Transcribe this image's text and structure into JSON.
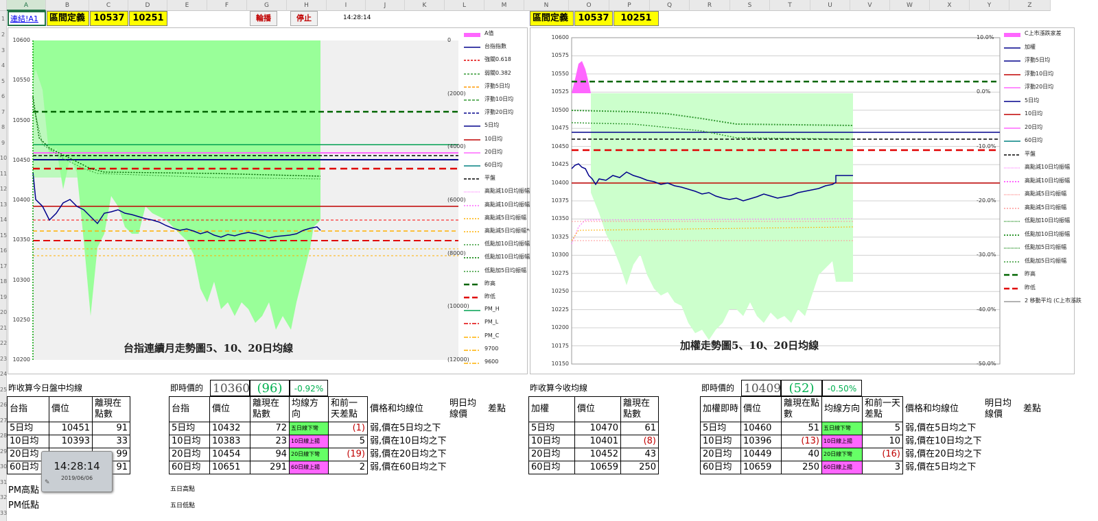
{
  "columns": [
    "A",
    "B",
    "C",
    "D",
    "E",
    "F",
    "G",
    "H",
    "I",
    "J",
    "K",
    "L",
    "M",
    "N",
    "O",
    "P",
    "Q",
    "R",
    "S",
    "T",
    "U",
    "V",
    "W",
    "X",
    "Y",
    "Z"
  ],
  "rows": [
    "1",
    "2",
    "3",
    "4",
    "5",
    "6",
    "7",
    "8",
    "9",
    "10",
    "11",
    "12",
    "13",
    "14",
    "15",
    "16",
    "17",
    "18",
    "19",
    "20",
    "21",
    "22",
    "23",
    "24",
    "25",
    "26",
    "27",
    "28",
    "29",
    "30",
    "31",
    "32",
    "33"
  ],
  "left_header": {
    "link": "連結!A1",
    "range_label": "區間定義",
    "high": "10537",
    "low": "10251",
    "btn_rotate": "輪播",
    "btn_stop": "停止",
    "time": "14:28:14"
  },
  "right_header": {
    "range_label": "區間定義",
    "high": "10537",
    "low": "10251"
  },
  "left_chart": {
    "title": "台指連續月走勢圖5、10、20日均線",
    "y_ticks": [
      "10600",
      "10550",
      "10500",
      "10450",
      "10400",
      "10350",
      "10300",
      "10250",
      "10200"
    ],
    "y2_ticks": [
      "0",
      "(2000)",
      "(4000)",
      "(6000)",
      "(8000)",
      "(10000)",
      "(12000)"
    ],
    "legend": [
      "A值",
      "台指指數",
      "強關0.618",
      "弱關0.382",
      "浮動5日均",
      "浮動10日均",
      "浮動20日均",
      "5日均",
      "10日均",
      "20日均",
      "60日均",
      "平盤",
      "高點減10日均振幅",
      "高點減10日均振幅*0.8",
      "高點減5日均振幅",
      "高點減5日均振幅*0.8",
      "低點加10日均振幅*0.8",
      "低點加10日均振幅",
      "低點加5日均振幅",
      "昨高",
      "昨低",
      "PM_H",
      "PM_L",
      "PM_C",
      "9700",
      "9600"
    ]
  },
  "right_chart": {
    "title": "加權走勢圖5、10、20日均線",
    "y_ticks": [
      "10600",
      "10575",
      "10550",
      "10525",
      "10500",
      "10475",
      "10450",
      "10425",
      "10400",
      "10375",
      "10350",
      "10325",
      "10300",
      "10275",
      "10250",
      "10225",
      "10200",
      "10175",
      "10150"
    ],
    "y2_ticks": [
      "10.0%",
      "0.0%",
      "-10.0%",
      "-20.0%",
      "-30.0%",
      "-40.0%",
      "-50.0%"
    ],
    "legend": [
      "C上市漲跌家差",
      "加權",
      "浮動5日均",
      "浮動10日均",
      "浮動20日均",
      "5日均",
      "10日均",
      "20日均",
      "60日均",
      "平盤",
      "高點減10日均振幅",
      "高點減10日均振幅",
      "高點減5日均振幅",
      "高點減5日均振幅",
      "低點加10日均振幅",
      "低點加10日均振幅",
      "低點加5日均振幅",
      "低點加5日均振幅",
      "昨高",
      "昨低",
      "2 移動平均 (C上市漲跌"
    ]
  },
  "tables": {
    "left_ma": {
      "title": "昨收算今日盤中均線",
      "headers": [
        "台指",
        "價位",
        "離現在點數"
      ],
      "rows": [
        [
          "5日均",
          "10451",
          "91"
        ],
        [
          "10日均",
          "10393",
          "33"
        ],
        [
          "20日均",
          "",
          "99"
        ],
        [
          "60日均",
          "",
          "91"
        ]
      ]
    },
    "left_rt": {
      "label": "即時價的",
      "price": "10360",
      "diff": "(96)",
      "pct": "-0.92%",
      "headers": [
        "台指",
        "價位",
        "離現在點數",
        "均線方向",
        "和前一天差點",
        "價格和均線位",
        "明日均線價",
        "差點"
      ],
      "rows": [
        [
          "5日均",
          "10432",
          "72",
          "五日線下彎",
          "(1)",
          "弱,價在5日均之下"
        ],
        [
          "10日均",
          "10383",
          "23",
          "10日線上揚",
          "5",
          "弱,價在10日均之下"
        ],
        [
          "20日均",
          "10454",
          "94",
          "20日線下彎",
          "(19)",
          "弱,價在20日均之下"
        ],
        [
          "60日均",
          "10651",
          "291",
          "60日線上揚",
          "2",
          "弱,價在60日均之下"
        ]
      ]
    },
    "right_ma": {
      "title": "昨收算今收均線",
      "headers": [
        "加權",
        "價位",
        "離現在點數"
      ],
      "rows": [
        [
          "5日均",
          "10470",
          "61"
        ],
        [
          "10日均",
          "10401",
          "(8)"
        ],
        [
          "20日均",
          "10452",
          "43"
        ],
        [
          "60日均",
          "10659",
          "250"
        ]
      ]
    },
    "right_rt": {
      "label": "即時價的",
      "price": "10409",
      "diff": "(52)",
      "pct": "-0.50%",
      "headers": [
        "加權即時",
        "價位",
        "離現在點數",
        "均線方向",
        "和前一天差點",
        "價格和均線位",
        "明日均線價",
        "差點"
      ],
      "rows": [
        [
          "5日均",
          "10460",
          "51",
          "五日線下彎",
          "5",
          "弱,價在5日均之下"
        ],
        [
          "10日均",
          "10396",
          "(13)",
          "10日線上揚",
          "10",
          "弱,價在10日均之下"
        ],
        [
          "20日均",
          "10449",
          "40",
          "20日線下彎",
          "(16)",
          "弱,價在20日均之下"
        ],
        [
          "60日均",
          "10659",
          "250",
          "60日線上揚",
          "3",
          "弱,價在5日均之下"
        ]
      ]
    }
  },
  "misc": {
    "pm_high": "PM高點",
    "pm_low": "PM低點",
    "five_day_high": "五日高點",
    "five_day_low": "五日低點"
  },
  "clock_widget": {
    "time": "14:28:14",
    "date": "2019/06/06"
  },
  "colors": {
    "green_fill": "#99ff99",
    "pink_fill": "#ff66ff",
    "index_line": "#00008b",
    "yellow_cell": "#ffff00",
    "excel_green": "#217346"
  }
}
